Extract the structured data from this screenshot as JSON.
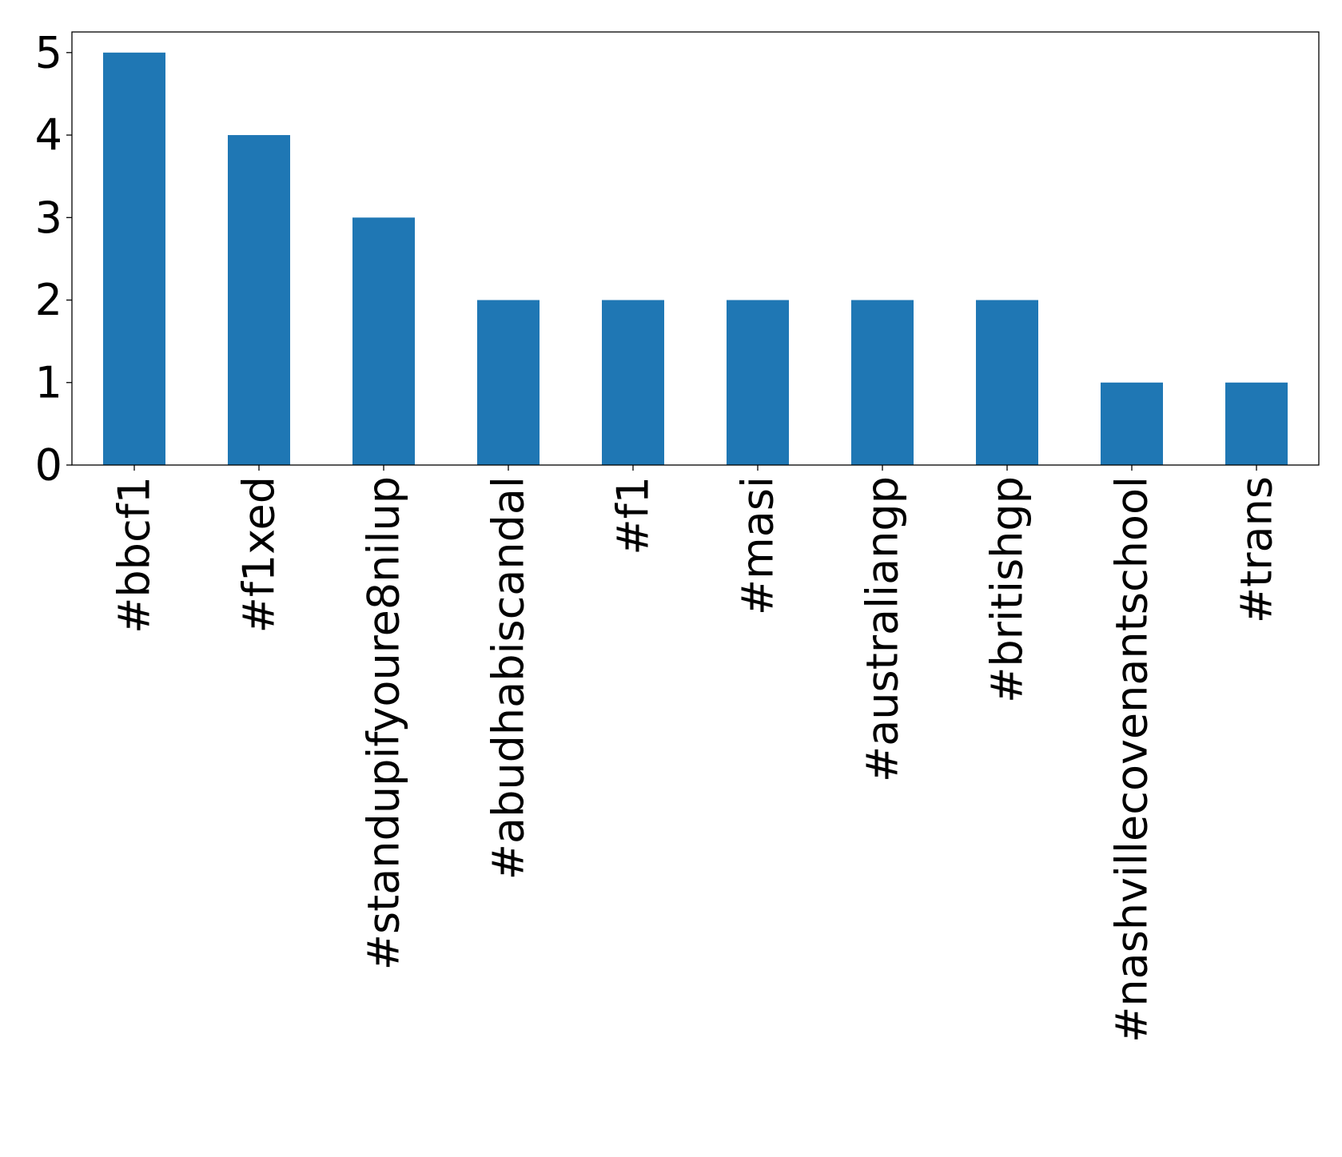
{
  "chart_data": {
    "type": "bar",
    "title": "",
    "xlabel": "",
    "ylabel": "",
    "categories": [
      "#bbcf1",
      "#f1xed",
      "#standupifyoure8nilup",
      "#abudhabiscandal",
      "#f1",
      "#masi",
      "#australiangp",
      "#britishgp",
      "#nashvillecovenantschool",
      "#trans"
    ],
    "values": [
      5,
      4,
      3,
      2,
      2,
      2,
      2,
      2,
      1,
      1
    ],
    "ylim": [
      0,
      5.25
    ],
    "yticks": [
      0,
      1,
      2,
      3,
      4,
      5
    ],
    "ytick_labels": [
      "0",
      "1",
      "2",
      "3",
      "4",
      "5"
    ],
    "bar_color": "#1f77b4",
    "grid": false,
    "legend": "none"
  }
}
